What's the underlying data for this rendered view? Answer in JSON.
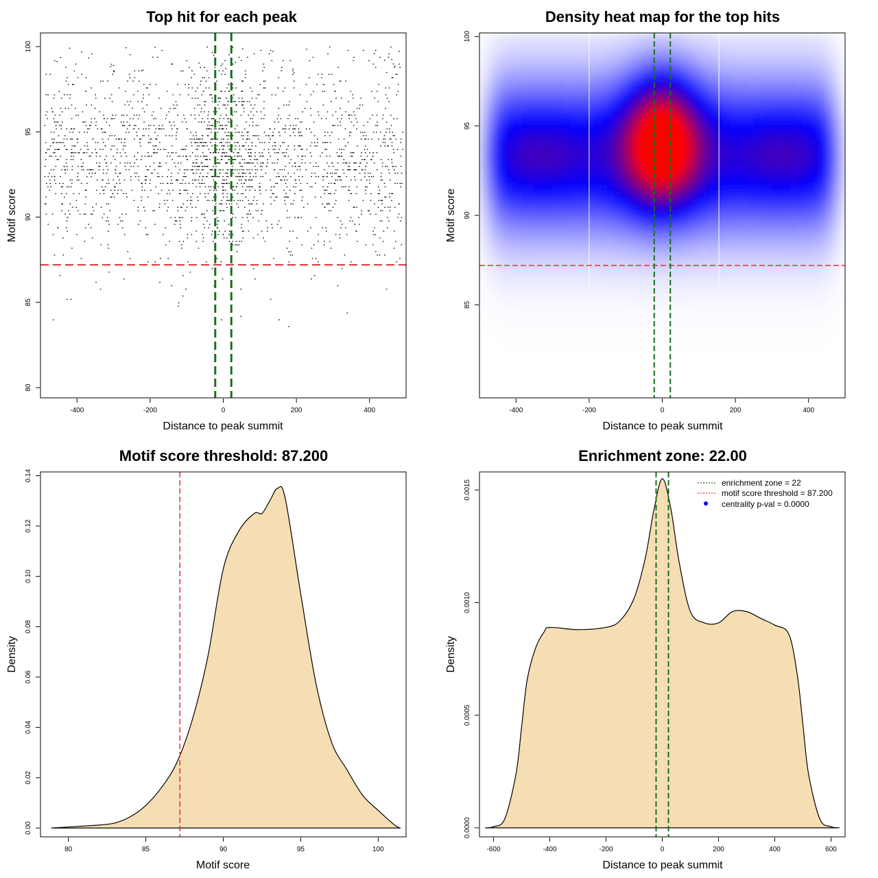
{
  "colors": {
    "threshold_red": "#e0302e",
    "zone_green": "#1a6e1a",
    "density_fill": "#f5deb3",
    "heat_low": "#ffffff",
    "heat_mid": "#0000ff",
    "heat_high": "#ff0000",
    "legend_dot": "#0000ff"
  },
  "chart_data": [
    {
      "id": "scatter",
      "type": "scatter",
      "title": "Top hit for each peak",
      "xlabel": "Distance to peak summit",
      "ylabel": "Motif score",
      "xlim": [
        -500,
        500
      ],
      "ylim": [
        79.4,
        100.8
      ],
      "xticks": [
        -400,
        -200,
        0,
        200,
        400
      ],
      "xtick_labels": [
        "-400",
        "-200",
        "0",
        "200",
        "400"
      ],
      "yticks": [
        80,
        85,
        90,
        95,
        100
      ],
      "ytick_labels": [
        "80",
        "85",
        "90",
        "95",
        "100"
      ],
      "threshold": 87.2,
      "zone": [
        -22,
        22
      ],
      "point_count": 2400,
      "point_distribution": {
        "x_range": [
          -490,
          490
        ],
        "y_mode": 93.5,
        "y_sd": 2.9,
        "y_max": 100
      }
    },
    {
      "id": "heatmap",
      "type": "heatmap",
      "title": "Density heat map for the top hits",
      "xlabel": "Distance to peak summit",
      "ylabel": "Motif score",
      "xlim": [
        -500,
        500
      ],
      "ylim": [
        79.8,
        100.2
      ],
      "xticks": [
        -400,
        -200,
        0,
        200,
        400
      ],
      "xtick_labels": [
        "-400",
        "-200",
        "0",
        "200",
        "400"
      ],
      "yticks": [
        85,
        90,
        95,
        100
      ],
      "ytick_labels": [
        "85",
        "90",
        "95",
        "100"
      ],
      "threshold": 87.2,
      "zone": [
        -22,
        22
      ],
      "white_lines_x": [
        -200,
        155
      ],
      "hotspot": {
        "x": 0,
        "y": 94.2
      }
    },
    {
      "id": "score-density",
      "type": "area",
      "title": "Motif score threshold: 87.200",
      "xlabel": "Motif score",
      "ylabel": "Density",
      "xlim": [
        78.2,
        101.8
      ],
      "ylim": [
        -0.0035,
        0.1415
      ],
      "xticks": [
        80,
        85,
        90,
        95,
        100
      ],
      "xtick_labels": [
        "80",
        "85",
        "90",
        "95",
        "100"
      ],
      "yticks": [
        0,
        0.02,
        0.04,
        0.06,
        0.08,
        0.1,
        0.12,
        0.14
      ],
      "ytick_labels": [
        "0.00",
        "0.02",
        "0.04",
        "0.06",
        "0.08",
        "0.10",
        "0.12",
        "0.14"
      ],
      "threshold": 87.2,
      "x": [
        78.9,
        80,
        81,
        82,
        83,
        84,
        85,
        86,
        87,
        88,
        89,
        90,
        91,
        92,
        92.5,
        93,
        93.5,
        94,
        95,
        96,
        97,
        98,
        99,
        100,
        101,
        101.4
      ],
      "y": [
        0,
        0.0004,
        0.0008,
        0.0012,
        0.002,
        0.0045,
        0.009,
        0.016,
        0.026,
        0.043,
        0.068,
        0.103,
        0.118,
        0.125,
        0.125,
        0.13,
        0.135,
        0.131,
        0.093,
        0.057,
        0.034,
        0.023,
        0.013,
        0.007,
        0.0015,
        0
      ]
    },
    {
      "id": "distance-density",
      "type": "area",
      "title": "Enrichment zone: 22.00",
      "xlabel": "Distance to peak summit",
      "ylabel": "Density",
      "xlim": [
        -650,
        650
      ],
      "ylim": [
        -4e-05,
        0.00158
      ],
      "xticks": [
        -600,
        -400,
        -200,
        0,
        200,
        400,
        600
      ],
      "xtick_labels": [
        "-600",
        "-400",
        "-200",
        "0",
        "200",
        "400",
        "600"
      ],
      "yticks": [
        0,
        0.0005,
        0.001,
        0.0015
      ],
      "ytick_labels": [
        "0.0000",
        "0.0005",
        "0.0010",
        "0.0015"
      ],
      "zone": [
        -22,
        22
      ],
      "x": [
        -630,
        -600,
        -560,
        -520,
        -500,
        -480,
        -450,
        -420,
        -400,
        -300,
        -200,
        -150,
        -100,
        -60,
        -30,
        0,
        30,
        60,
        100,
        150,
        200,
        250,
        300,
        350,
        400,
        450,
        480,
        500,
        520,
        560,
        600,
        630
      ],
      "y": [
        0,
        5e-06,
        4e-05,
        0.00024,
        0.00045,
        0.00066,
        0.0008,
        0.00087,
        0.00089,
        0.00088,
        0.00089,
        0.00092,
        0.00102,
        0.0012,
        0.00141,
        0.00155,
        0.00142,
        0.00118,
        0.00096,
        0.00091,
        0.00091,
        0.00096,
        0.00096,
        0.00093,
        0.0009,
        0.00086,
        0.00068,
        0.00046,
        0.00024,
        4e-05,
        5e-06,
        0
      ],
      "legend": [
        {
          "label": "enrichment zone = 22",
          "style": "green-dotted"
        },
        {
          "label": "motif score threshold = 87.200",
          "style": "red-dotted"
        },
        {
          "label": "centrality p-val = 0.0000",
          "style": "blue-dot"
        }
      ],
      "legend_position": "top-right"
    }
  ]
}
